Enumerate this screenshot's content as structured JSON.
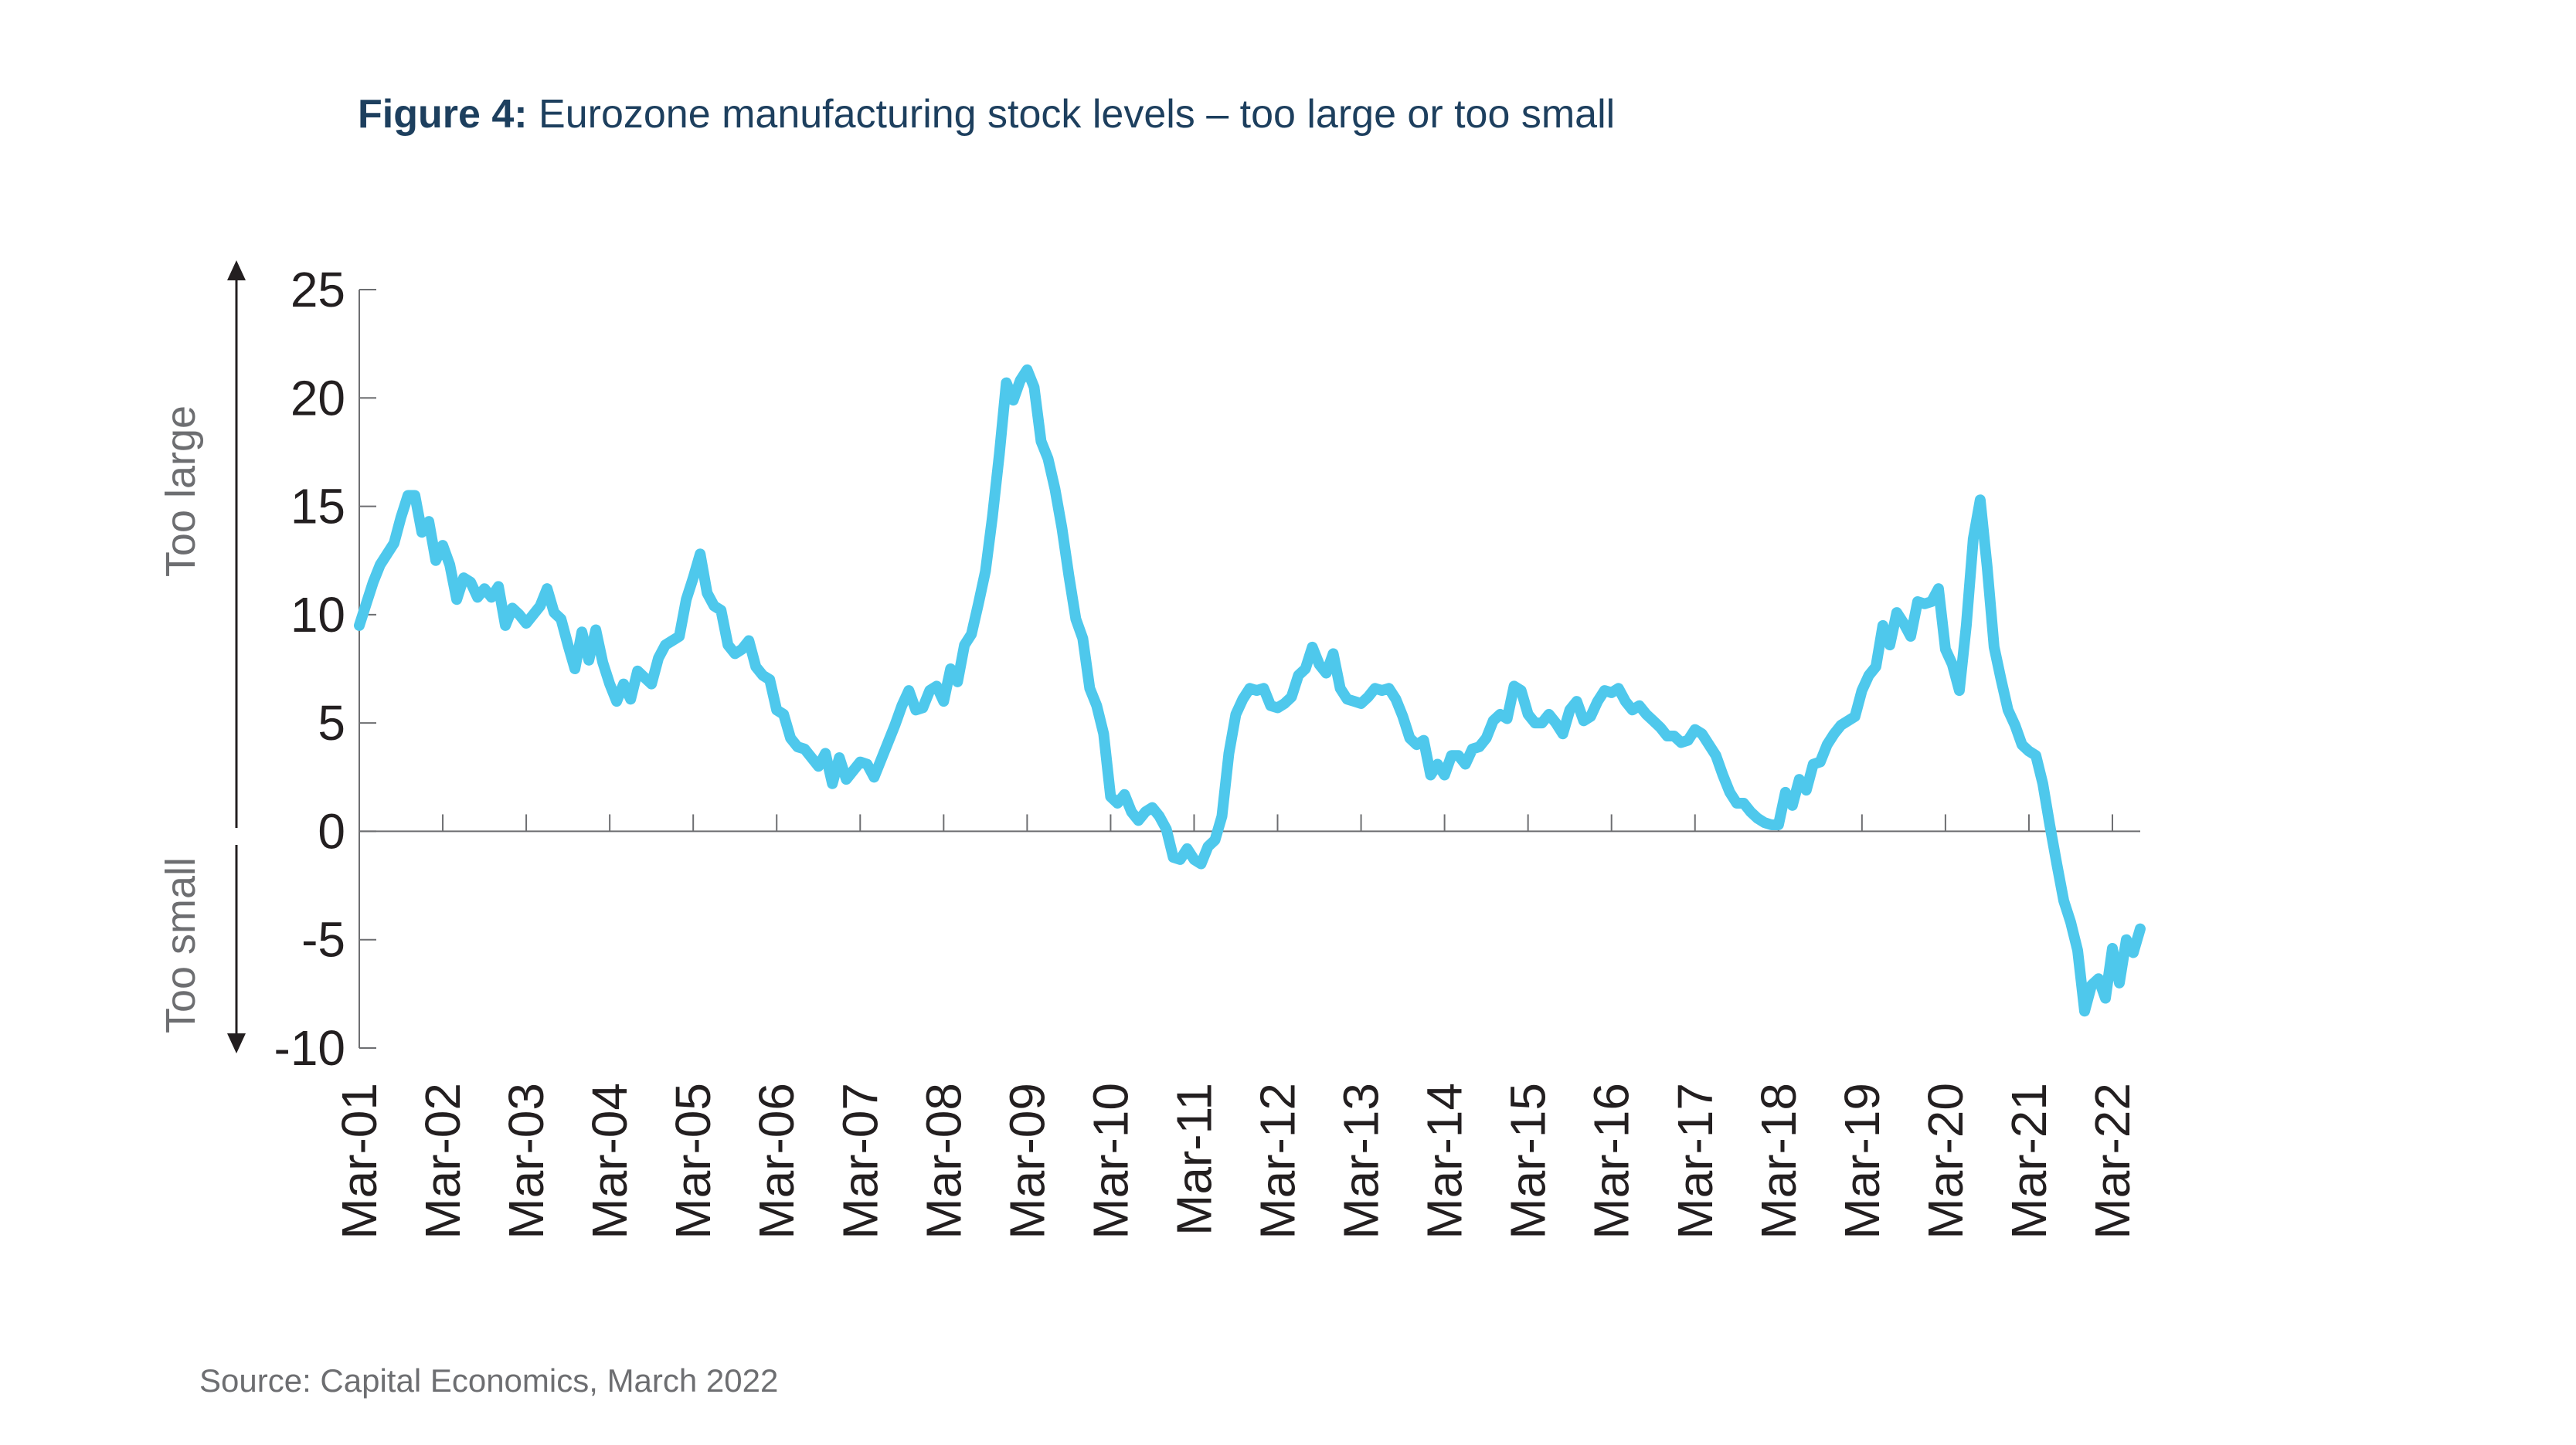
{
  "figure": {
    "label": "Figure 4:",
    "title": "Eurozone manufacturing stock levels – too large or too small",
    "source": "Source: Capital Economics, March 2022"
  },
  "colors": {
    "line": "#4ec8ec",
    "title": "#1d3f5e",
    "axis": "#6d6e71",
    "text": "#231f20"
  },
  "chart_data": {
    "type": "line",
    "title": "Eurozone manufacturing stock levels – too large or too small",
    "ylabel_upper": "Too large",
    "ylabel_lower": "Too small",
    "ylim": [
      -10,
      25
    ],
    "yticks": [
      "25",
      "20",
      "15",
      "10",
      "5",
      "0",
      "-5",
      "-10"
    ],
    "yticks_values": [
      25,
      20,
      15,
      10,
      5,
      0,
      -5,
      -10
    ],
    "xticks": [
      "Mar-01",
      "Mar-02",
      "Mar-03",
      "Mar-04",
      "Mar-05",
      "Mar-06",
      "Mar-07",
      "Mar-08",
      "Mar-09",
      "Mar-10",
      "Mar-11",
      "Mar-12",
      "Mar-13",
      "Mar-14",
      "Mar-15",
      "Mar-16",
      "Mar-17",
      "Mar-18",
      "Mar-19",
      "Mar-20",
      "Mar-21",
      "Mar-22"
    ],
    "grid": false,
    "legend": "none",
    "series": [
      {
        "x_start": "Mar-01",
        "frequency": "monthly",
        "values": [
          9.5,
          10.5,
          11.5,
          12.3,
          12.8,
          13.3,
          14.5,
          15.5,
          15.5,
          13.8,
          14.3,
          12.5,
          13.2,
          12.3,
          10.7,
          11.7,
          11.5,
          10.8,
          11.2,
          10.8,
          11.3,
          9.5,
          10.3,
          10,
          9.6,
          10,
          10.4,
          11.2,
          10.1,
          9.8,
          8.6,
          7.5,
          9.2,
          7.9,
          9.3,
          7.8,
          6.8,
          6,
          6.8,
          6.1,
          7.4,
          7.1,
          6.8,
          8,
          8.6,
          8.8,
          9,
          10.7,
          11.7,
          12.8,
          11,
          10.4,
          10.2,
          8.6,
          8.2,
          8.4,
          8.8,
          7.6,
          7.2,
          7,
          5.6,
          5.4,
          4.3,
          3.9,
          3.8,
          3.4,
          3,
          3.6,
          2.2,
          3.4,
          2.4,
          2.8,
          3.2,
          3.1,
          2.5,
          3.3,
          4.1,
          4.9,
          5.8,
          6.5,
          5.6,
          5.7,
          6.5,
          6.7,
          6,
          7.5,
          6.9,
          8.6,
          9.1,
          10.5,
          12,
          14.5,
          17.4,
          20.7,
          19.9,
          20.8,
          21.3,
          20.5,
          18,
          17.2,
          15.8,
          14,
          11.8,
          9.8,
          8.9,
          6.6,
          5.8,
          4.5,
          1.6,
          1.3,
          1.7,
          0.9,
          0.5,
          0.9,
          1.1,
          0.7,
          0.1,
          -1.2,
          -1.3,
          -0.8,
          -1.3,
          -1.5,
          -0.7,
          -0.4,
          0.7,
          3.6,
          5.4,
          6.1,
          6.6,
          6.5,
          6.6,
          5.8,
          5.7,
          5.9,
          6.2,
          7.2,
          7.5,
          8.5,
          7.7,
          7.3,
          8.2,
          6.6,
          6.1,
          6,
          5.9,
          6.2,
          6.6,
          6.5,
          6.6,
          6.1,
          5.3,
          4.3,
          4,
          4.2,
          2.6,
          3.1,
          2.6,
          3.5,
          3.5,
          3.1,
          3.8,
          3.9,
          4.3,
          5.1,
          5.4,
          5.2,
          6.7,
          6.5,
          5.4,
          5,
          5,
          5.4,
          5,
          4.5,
          5.6,
          6,
          5.1,
          5.3,
          6,
          6.5,
          6.4,
          6.6,
          6,
          5.6,
          5.8,
          5.4,
          5.1,
          4.8,
          4.4,
          4.4,
          4.1,
          4.2,
          4.7,
          4.5,
          4,
          3.5,
          2.6,
          1.8,
          1.3,
          1.3,
          0.9,
          0.6,
          0.4,
          0.3,
          0.3,
          1.8,
          1.2,
          2.4,
          1.9,
          3.1,
          3.2,
          4,
          4.5,
          4.9,
          5.1,
          5.3,
          6.5,
          7.2,
          7.6,
          9.5,
          8.6,
          10.1,
          9.6,
          9,
          10.6,
          10.5,
          10.6,
          11.2,
          8.4,
          7.7,
          6.5,
          9.5,
          13.5,
          15.3,
          12.2,
          8.5,
          7,
          5.6,
          4.9,
          4,
          3.7,
          3.5,
          2.2,
          0.3,
          -1.5,
          -3.2,
          -4.2,
          -5.5,
          -8.3,
          -7.1,
          -6.8,
          -7.7,
          -5.4,
          -7,
          -5,
          -5.6,
          -4.5
        ]
      }
    ]
  }
}
